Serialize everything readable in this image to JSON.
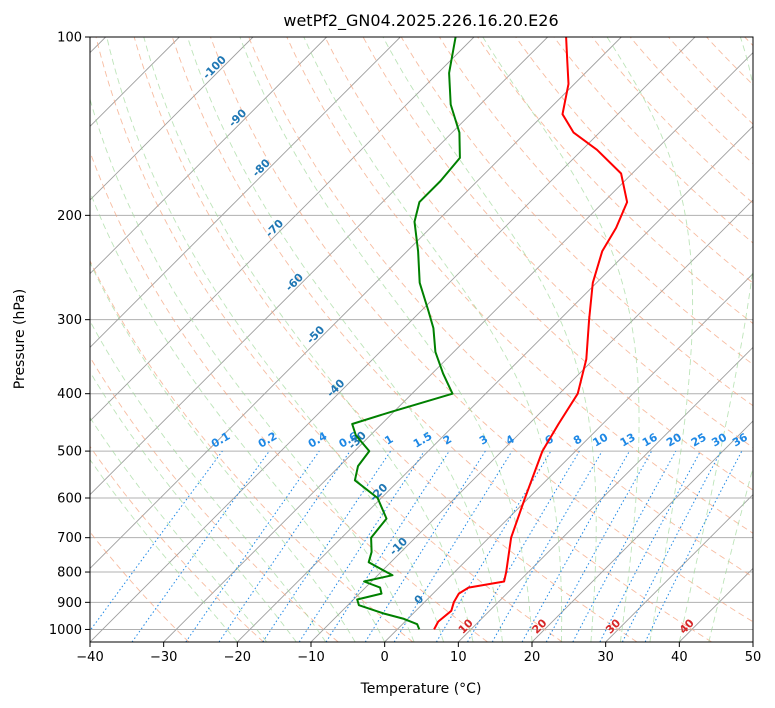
{
  "chart_data": {
    "type": "skew-t",
    "title": "wetPf2_GN04.2025.226.16.20.E26",
    "xlabel": "Temperature (°C)",
    "ylabel": "Pressure (hPa)",
    "xlim": [
      -40,
      50
    ],
    "ylim_hpa": [
      1050,
      100
    ],
    "x_ticks": [
      -40,
      -30,
      -20,
      -10,
      0,
      10,
      20,
      30,
      40,
      50
    ],
    "y_ticks": [
      100,
      200,
      300,
      400,
      500,
      600,
      700,
      800,
      900,
      1000
    ],
    "grid": true,
    "colors": {
      "temperature": "#ff0000",
      "dewpoint": "#008000",
      "isotherm": "#9e9e9e",
      "dry_adiabat": "#f4a582",
      "moist_adiabat": "#a1d99b",
      "mixing_ratio": "#1e88e5"
    },
    "series": [
      {
        "name": "",
        "key": "temperature",
        "points": [
          {
            "p": 1000,
            "t": 5.0
          },
          {
            "p": 970,
            "t": 4.5
          },
          {
            "p": 930,
            "t": 4.8
          },
          {
            "p": 900,
            "t": 4.0
          },
          {
            "p": 870,
            "t": 3.5
          },
          {
            "p": 850,
            "t": 4.0
          },
          {
            "p": 830,
            "t": 8.0
          },
          {
            "p": 800,
            "t": 7.0
          },
          {
            "p": 700,
            "t": 3.0
          },
          {
            "p": 600,
            "t": -0.5
          },
          {
            "p": 500,
            "t": -4.5
          },
          {
            "p": 450,
            "t": -6.0
          },
          {
            "p": 400,
            "t": -7.5
          },
          {
            "p": 350,
            "t": -11.0
          },
          {
            "p": 300,
            "t": -16.0
          },
          {
            "p": 260,
            "t": -20.5
          },
          {
            "p": 230,
            "t": -23.5
          },
          {
            "p": 210,
            "t": -24.8
          },
          {
            "p": 190,
            "t": -26.8
          },
          {
            "p": 170,
            "t": -31.5
          },
          {
            "p": 155,
            "t": -38.0
          },
          {
            "p": 145,
            "t": -43.5
          },
          {
            "p": 135,
            "t": -47.5
          },
          {
            "p": 120,
            "t": -50.8
          },
          {
            "p": 110,
            "t": -54.0
          },
          {
            "p": 100,
            "t": -57.5
          }
        ]
      },
      {
        "name": "",
        "key": "dewpoint",
        "points": [
          {
            "p": 1000,
            "t": 3.0
          },
          {
            "p": 980,
            "t": 2.0
          },
          {
            "p": 960,
            "t": -0.5
          },
          {
            "p": 940,
            "t": -4.0
          },
          {
            "p": 910,
            "t": -8.5
          },
          {
            "p": 890,
            "t": -9.5
          },
          {
            "p": 870,
            "t": -7.0
          },
          {
            "p": 850,
            "t": -8.0
          },
          {
            "p": 830,
            "t": -11.0
          },
          {
            "p": 810,
            "t": -8.0
          },
          {
            "p": 790,
            "t": -10.5
          },
          {
            "p": 770,
            "t": -13.0
          },
          {
            "p": 740,
            "t": -14.0
          },
          {
            "p": 700,
            "t": -16.0
          },
          {
            "p": 650,
            "t": -16.5
          },
          {
            "p": 600,
            "t": -20.5
          },
          {
            "p": 560,
            "t": -26.0
          },
          {
            "p": 530,
            "t": -27.5
          },
          {
            "p": 500,
            "t": -28.0
          },
          {
            "p": 470,
            "t": -32.0
          },
          {
            "p": 450,
            "t": -34.0
          },
          {
            "p": 430,
            "t": -30.5
          },
          {
            "p": 400,
            "t": -24.5
          },
          {
            "p": 370,
            "t": -28.5
          },
          {
            "p": 340,
            "t": -32.5
          },
          {
            "p": 310,
            "t": -36.0
          },
          {
            "p": 290,
            "t": -39.0
          },
          {
            "p": 260,
            "t": -44.0
          },
          {
            "p": 230,
            "t": -48.5
          },
          {
            "p": 205,
            "t": -53.0
          },
          {
            "p": 190,
            "t": -55.0
          },
          {
            "p": 175,
            "t": -55.0
          },
          {
            "p": 160,
            "t": -55.5
          },
          {
            "p": 145,
            "t": -59.0
          },
          {
            "p": 130,
            "t": -64.0
          },
          {
            "p": 115,
            "t": -68.5
          },
          {
            "p": 100,
            "t": -72.5
          }
        ]
      }
    ],
    "isotherm_labels": [
      "-100",
      "-90",
      "-80",
      "-70",
      "-60",
      "-50",
      "-40",
      "-30",
      "-20",
      "-10",
      "0",
      "10",
      "20",
      "30",
      "40"
    ],
    "mixing_ratio_labels": [
      "0.1",
      "0.2",
      "0.4",
      "0.6",
      "1",
      "1.5",
      "2",
      "3",
      "4",
      "6",
      "8",
      "10",
      "13",
      "16",
      "20",
      "25",
      "30",
      "36"
    ]
  }
}
